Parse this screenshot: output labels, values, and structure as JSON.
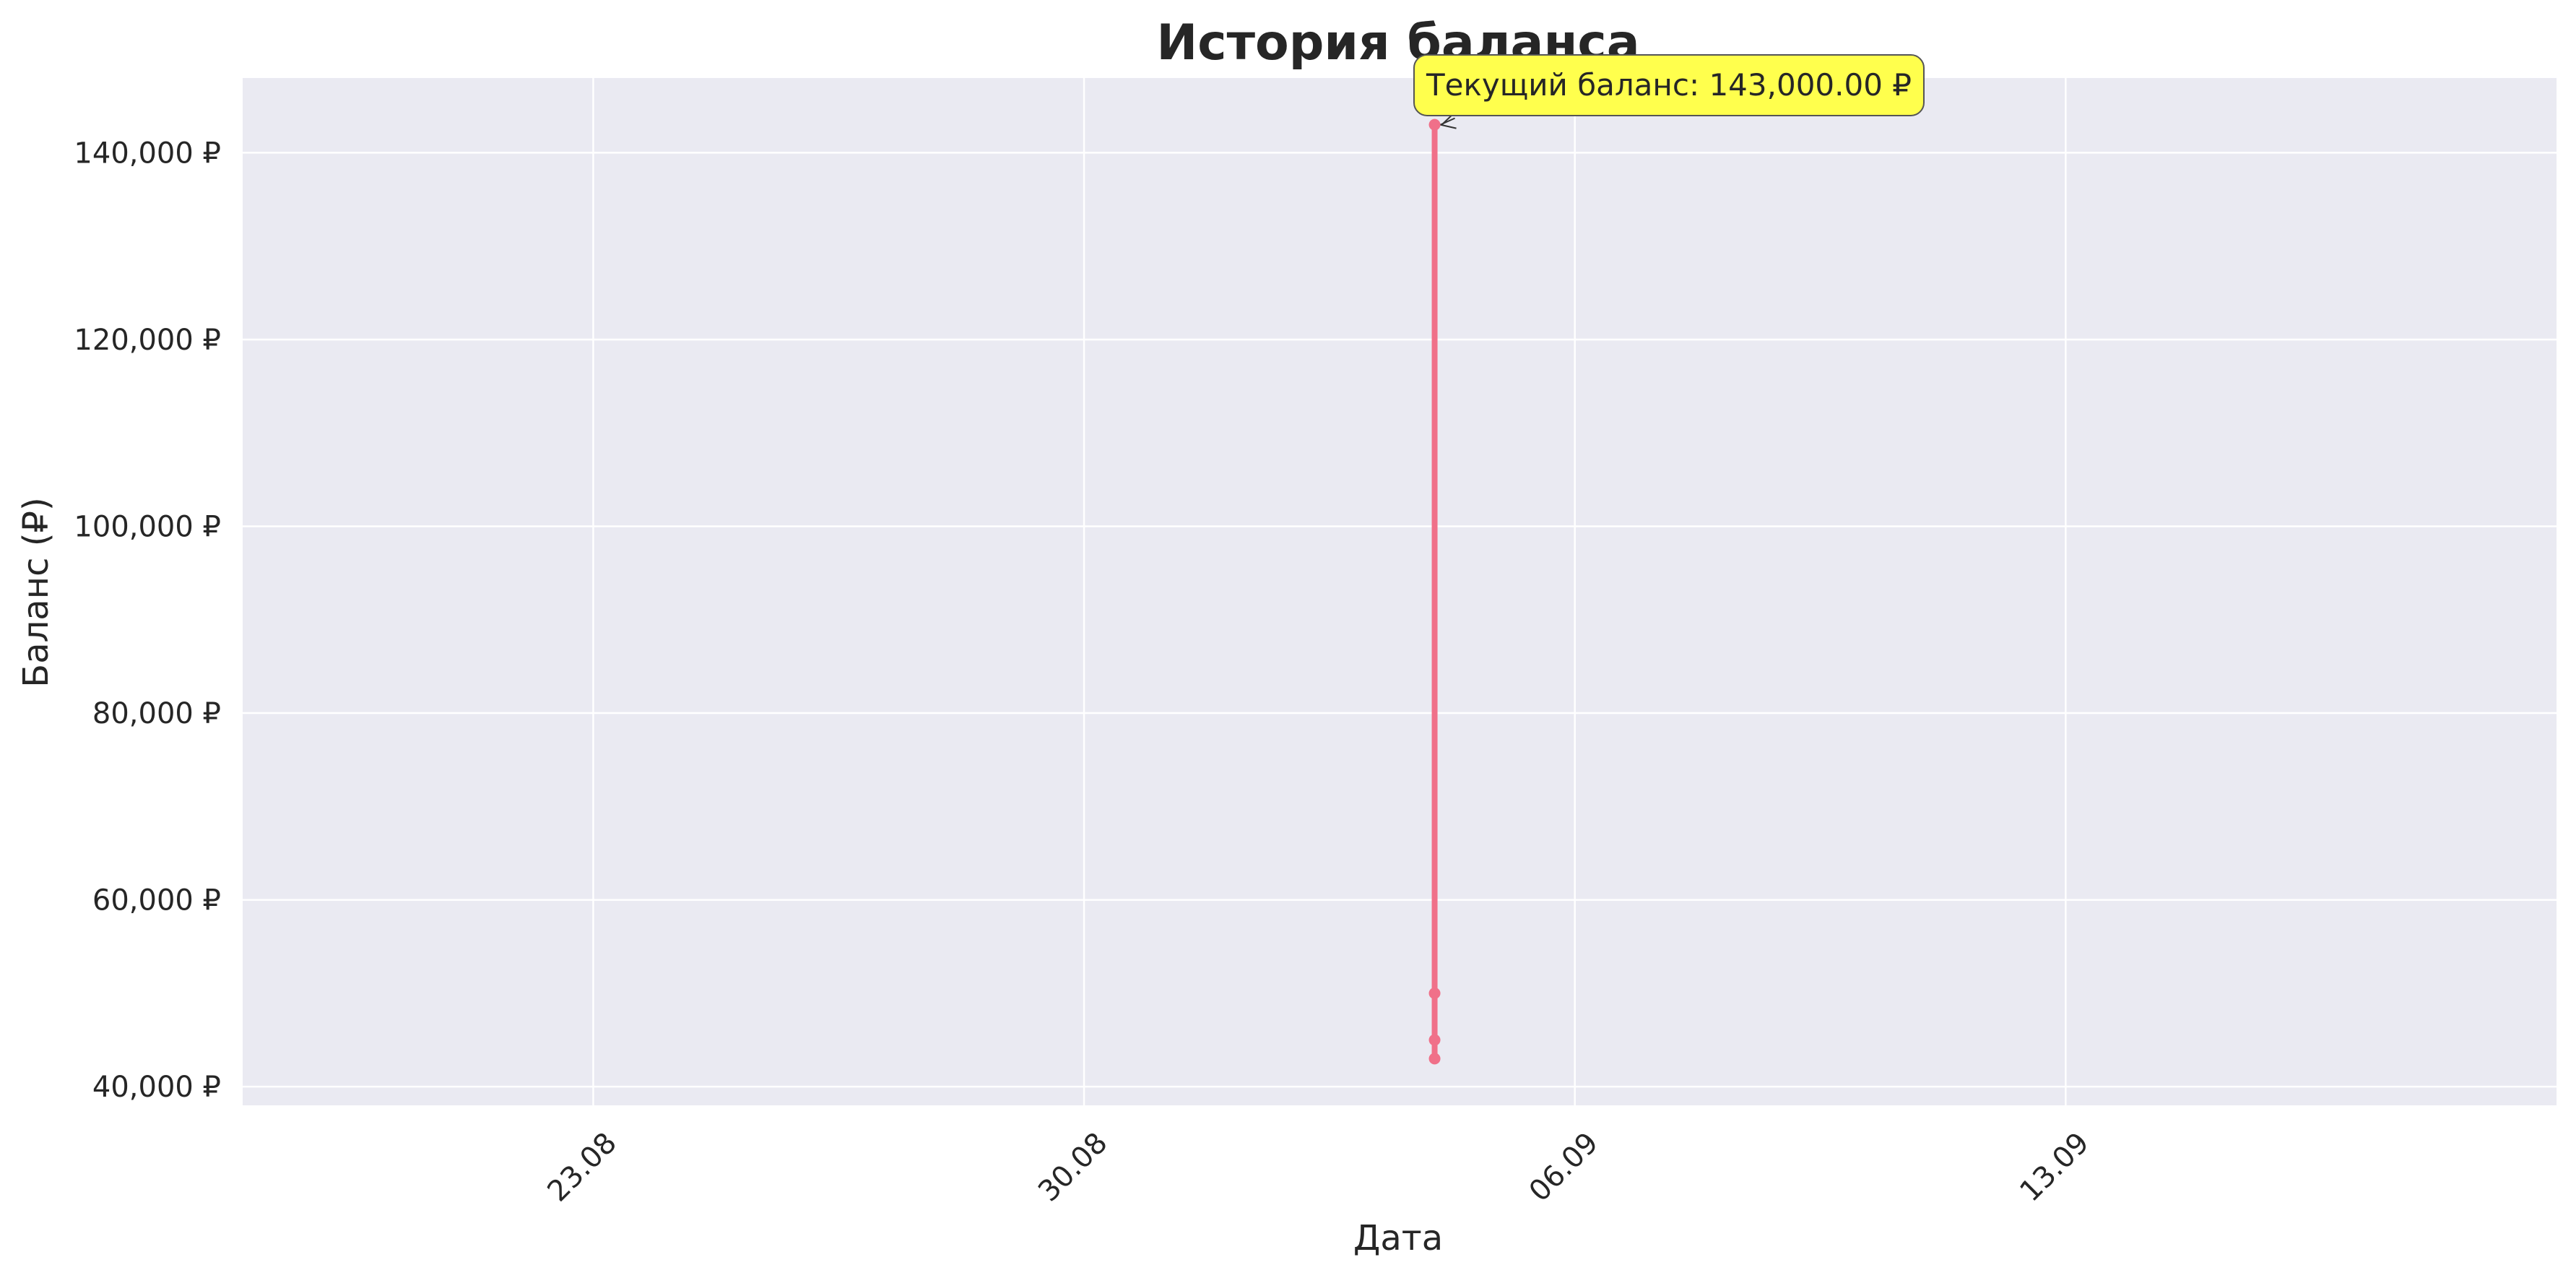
{
  "chart_data": {
    "type": "line",
    "title": "История баланса",
    "xlabel": "Дата",
    "ylabel": "Баланс (₽)",
    "x_type": "date",
    "xlim": [
      "2025-08-18",
      "2025-09-20"
    ],
    "ylim": [
      38000,
      148000
    ],
    "x_ticks": [
      {
        "date": "2025-08-23",
        "label": "23.08"
      },
      {
        "date": "2025-08-30",
        "label": "30.08"
      },
      {
        "date": "2025-09-06",
        "label": "06.09"
      },
      {
        "date": "2025-09-13",
        "label": "13.09"
      }
    ],
    "y_ticks": [
      {
        "value": 40000,
        "label": "40,000 ₽"
      },
      {
        "value": 60000,
        "label": "60,000 ₽"
      },
      {
        "value": 80000,
        "label": "80,000 ₽"
      },
      {
        "value": 100000,
        "label": "100,000 ₽"
      },
      {
        "value": 120000,
        "label": "120,000 ₽"
      },
      {
        "value": 140000,
        "label": "140,000 ₽"
      }
    ],
    "series": [
      {
        "color": "#f07089",
        "points": [
          {
            "x": "2025-09-04",
            "y": 43000
          },
          {
            "x": "2025-09-04",
            "y": 45000
          },
          {
            "x": "2025-09-04",
            "y": 50000
          },
          {
            "x": "2025-09-04",
            "y": 143000
          }
        ]
      }
    ],
    "annotation": {
      "text": "Текущий баланс: 143,000.00 ₽",
      "x": "2025-09-04",
      "y": 143000,
      "box_color": "#ffff4d"
    },
    "grid": true,
    "background": "#eaeaf2",
    "grid_color": "#ffffff"
  }
}
